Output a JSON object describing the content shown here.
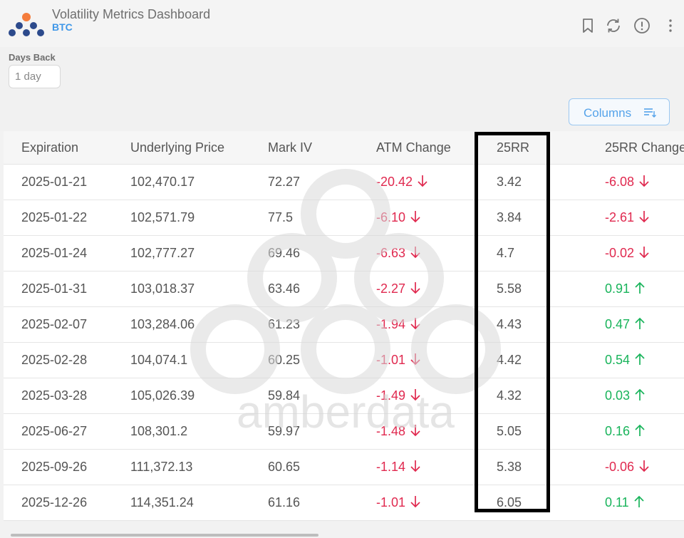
{
  "header": {
    "title": "Volatility Metrics Dashboard",
    "subtitle": "BTC",
    "icons": [
      "bookmark-icon",
      "refresh-icon",
      "info-icon",
      "more-vertical-icon"
    ]
  },
  "controls": {
    "days_back_label": "Days Back",
    "days_back_value": "1 day",
    "columns_label": "Columns"
  },
  "watermark": {
    "text": "amberdata"
  },
  "colors": {
    "negative": "#e0294f",
    "positive": "#19b45b",
    "accent": "#3f97e8"
  },
  "table": {
    "headers": [
      "Expiration",
      "Underlying Price",
      "Mark IV",
      "ATM Change",
      "25RR",
      "25RR Change"
    ],
    "rows": [
      {
        "expiration": "2025-01-21",
        "price": "102,470.17",
        "mark_iv": "72.27",
        "atm_change": "-20.42",
        "atm_dir": "down",
        "rr25": "3.42",
        "rr25_change": "-6.08",
        "rr_dir": "down"
      },
      {
        "expiration": "2025-01-22",
        "price": "102,571.79",
        "mark_iv": "77.5",
        "atm_change": "-6.10",
        "atm_dir": "down",
        "rr25": "3.84",
        "rr25_change": "-2.61",
        "rr_dir": "down"
      },
      {
        "expiration": "2025-01-24",
        "price": "102,777.27",
        "mark_iv": "69.46",
        "atm_change": "-6.63",
        "atm_dir": "down",
        "rr25": "4.7",
        "rr25_change": "-0.02",
        "rr_dir": "down"
      },
      {
        "expiration": "2025-01-31",
        "price": "103,018.37",
        "mark_iv": "63.46",
        "atm_change": "-2.27",
        "atm_dir": "down",
        "rr25": "5.58",
        "rr25_change": "0.91",
        "rr_dir": "up"
      },
      {
        "expiration": "2025-02-07",
        "price": "103,284.06",
        "mark_iv": "61.23",
        "atm_change": "-1.94",
        "atm_dir": "down",
        "rr25": "4.43",
        "rr25_change": "0.47",
        "rr_dir": "up"
      },
      {
        "expiration": "2025-02-28",
        "price": "104,074.1",
        "mark_iv": "60.25",
        "atm_change": "-1.01",
        "atm_dir": "down",
        "rr25": "4.42",
        "rr25_change": "0.54",
        "rr_dir": "up"
      },
      {
        "expiration": "2025-03-28",
        "price": "105,026.39",
        "mark_iv": "59.84",
        "atm_change": "-1.49",
        "atm_dir": "down",
        "rr25": "4.32",
        "rr25_change": "0.03",
        "rr_dir": "up"
      },
      {
        "expiration": "2025-06-27",
        "price": "108,301.2",
        "mark_iv": "59.97",
        "atm_change": "-1.48",
        "atm_dir": "down",
        "rr25": "5.05",
        "rr25_change": "0.16",
        "rr_dir": "up"
      },
      {
        "expiration": "2025-09-26",
        "price": "111,372.13",
        "mark_iv": "60.65",
        "atm_change": "-1.14",
        "atm_dir": "down",
        "rr25": "5.38",
        "rr25_change": "-0.06",
        "rr_dir": "down"
      },
      {
        "expiration": "2025-12-26",
        "price": "114,351.24",
        "mark_iv": "61.16",
        "atm_change": "-1.01",
        "atm_dir": "down",
        "rr25": "6.05",
        "rr25_change": "0.11",
        "rr_dir": "up"
      }
    ]
  }
}
